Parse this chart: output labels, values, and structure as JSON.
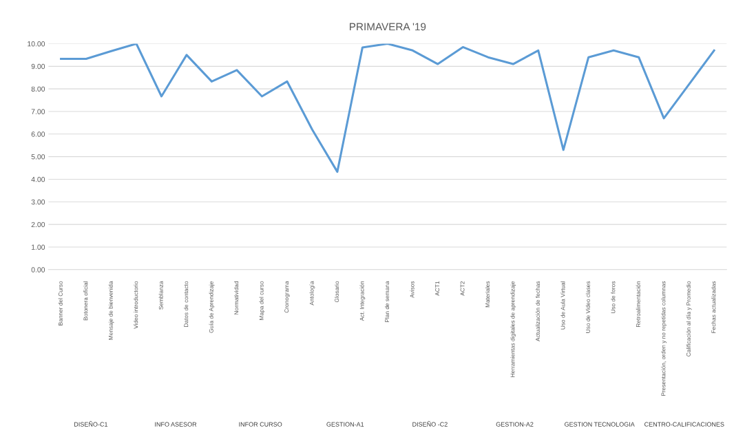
{
  "chart_data": {
    "type": "line",
    "title": "PRIMAVERA '19",
    "categories": [
      "Banner del Curso",
      "Botonera oficial",
      "Mensaje de bienvenida",
      "Video introductorio",
      "Semblanza",
      "Datos de contacto",
      "Guía de Aprendizaje",
      "Normatividad",
      "Mapa del curso",
      "Cronograma",
      "Antología",
      "Glosario",
      "Act. Integración",
      "Plan de semana",
      "Avisos",
      "ACT1",
      "ACT2",
      "Materiales",
      "Herramientas digitales de aprendizaje",
      "Actualización de fechas",
      "Uso de Aula Virtual",
      "Uso de Video clases",
      "Uso de foros",
      "Retroalimentación",
      "Presentación, orden y no repetidas columnas",
      "Calificación al día y Promedio",
      "Fechas actualizadas"
    ],
    "series": [
      {
        "color": "#5b9bd5",
        "values": [
          9.33,
          9.33,
          9.67,
          10.0,
          7.67,
          9.5,
          8.33,
          8.83,
          7.67,
          8.33,
          6.2,
          4.33,
          9.83,
          10.0,
          9.7,
          9.1,
          9.85,
          9.4,
          9.1,
          9.7,
          5.3,
          9.4,
          9.7,
          9.4,
          6.7,
          8.2,
          9.7
        ]
      }
    ],
    "ylim": [
      0,
      10
    ],
    "yticks": [
      {
        "value": 0,
        "label": "0.00"
      },
      {
        "value": 1,
        "label": "1.00"
      },
      {
        "value": 2,
        "label": "2.00"
      },
      {
        "value": 3,
        "label": "3.00"
      },
      {
        "value": 4,
        "label": "4.00"
      },
      {
        "value": 5,
        "label": "5.00"
      },
      {
        "value": 6,
        "label": "6.00"
      },
      {
        "value": 7,
        "label": "7.00"
      },
      {
        "value": 8,
        "label": "8.00"
      },
      {
        "value": 9,
        "label": "9.00"
      },
      {
        "value": 10,
        "label": "10.00"
      }
    ],
    "grid": "y",
    "marker": "none",
    "line_style": "solid",
    "annotations": [
      "DISEÑO-C1",
      "INFO ASESOR",
      "INFOR CURSO",
      "GESTION-A1",
      "DISEÑO -C2",
      "GESTION-A2",
      "GESTION TECNOLOGIA",
      "CENTRO-CALIFICACIONES"
    ]
  }
}
